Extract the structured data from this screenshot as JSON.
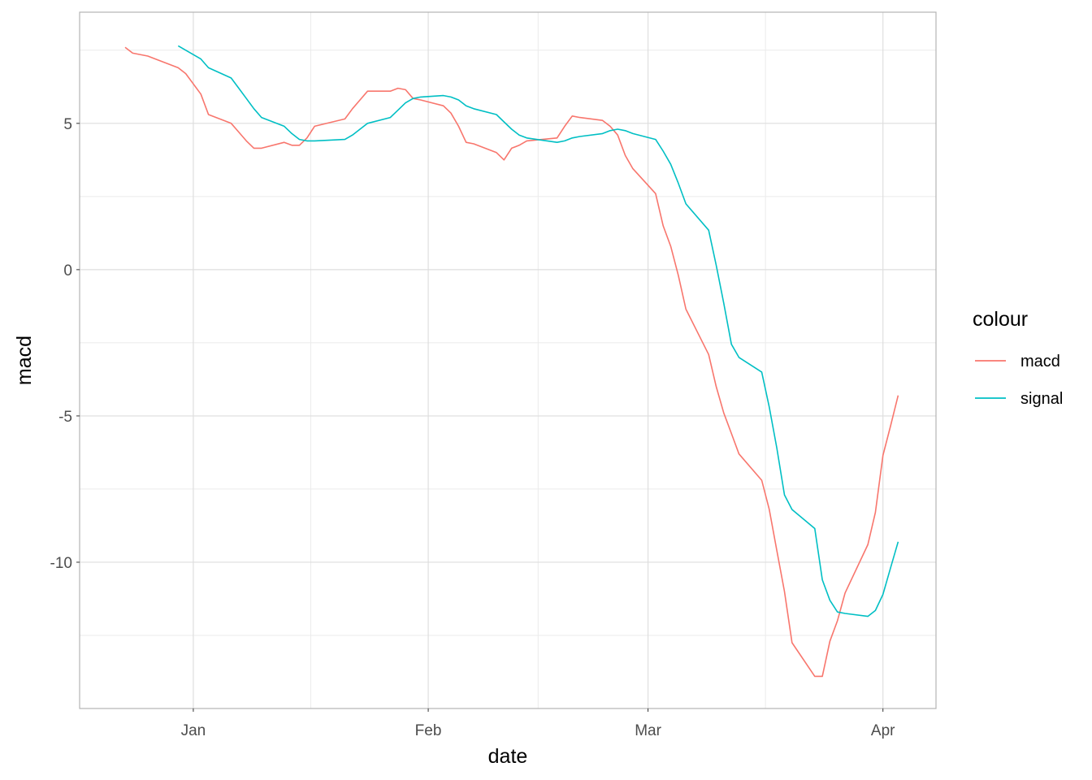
{
  "chart_data": {
    "type": "line",
    "xlabel": "date",
    "ylabel": "macd",
    "x_axis": {
      "type": "date",
      "range": [
        "2019-12-17",
        "2020-04-08"
      ],
      "ticks": [
        {
          "date": "2020-01-01",
          "label": "Jan"
        },
        {
          "date": "2020-02-01",
          "label": "Feb"
        },
        {
          "date": "2020-03-01",
          "label": "Mar"
        },
        {
          "date": "2020-04-01",
          "label": "Apr"
        }
      ]
    },
    "y_axis": {
      "range": [
        -15,
        8.8
      ],
      "ticks": [
        -10,
        -5,
        0,
        5
      ]
    },
    "grid": true,
    "legend": {
      "title": "colour",
      "position": "right"
    },
    "series": [
      {
        "name": "macd",
        "color": "#F8766D",
        "points": [
          [
            "2019-12-23",
            7.6
          ],
          [
            "2019-12-24",
            7.4
          ],
          [
            "2019-12-26",
            7.3
          ],
          [
            "2019-12-27",
            7.2
          ],
          [
            "2019-12-30",
            6.9
          ],
          [
            "2019-12-31",
            6.7
          ],
          [
            "2020-01-02",
            6.0
          ],
          [
            "2020-01-03",
            5.3
          ],
          [
            "2020-01-06",
            5.0
          ],
          [
            "2020-01-07",
            4.7
          ],
          [
            "2020-01-08",
            4.4
          ],
          [
            "2020-01-09",
            4.15
          ],
          [
            "2020-01-10",
            4.15
          ],
          [
            "2020-01-13",
            4.35
          ],
          [
            "2020-01-14",
            4.25
          ],
          [
            "2020-01-15",
            4.25
          ],
          [
            "2020-01-16",
            4.5
          ],
          [
            "2020-01-17",
            4.9
          ],
          [
            "2020-01-21",
            5.15
          ],
          [
            "2020-01-22",
            5.5
          ],
          [
            "2020-01-23",
            5.8
          ],
          [
            "2020-01-24",
            6.1
          ],
          [
            "2020-01-27",
            6.1
          ],
          [
            "2020-01-28",
            6.2
          ],
          [
            "2020-01-29",
            6.15
          ],
          [
            "2020-01-30",
            5.85
          ],
          [
            "2020-01-31",
            5.8
          ],
          [
            "2020-02-03",
            5.6
          ],
          [
            "2020-02-04",
            5.35
          ],
          [
            "2020-02-05",
            4.9
          ],
          [
            "2020-02-06",
            4.35
          ],
          [
            "2020-02-07",
            4.3
          ],
          [
            "2020-02-10",
            4.0
          ],
          [
            "2020-02-11",
            3.75
          ],
          [
            "2020-02-12",
            4.15
          ],
          [
            "2020-02-13",
            4.25
          ],
          [
            "2020-02-14",
            4.4
          ],
          [
            "2020-02-18",
            4.5
          ],
          [
            "2020-02-19",
            4.9
          ],
          [
            "2020-02-20",
            5.25
          ],
          [
            "2020-02-21",
            5.2
          ],
          [
            "2020-02-24",
            5.1
          ],
          [
            "2020-02-25",
            4.9
          ],
          [
            "2020-02-26",
            4.6
          ],
          [
            "2020-02-27",
            3.9
          ],
          [
            "2020-02-28",
            3.45
          ],
          [
            "2020-03-02",
            2.6
          ],
          [
            "2020-03-03",
            1.5
          ],
          [
            "2020-03-04",
            0.8
          ],
          [
            "2020-03-05",
            -0.2
          ],
          [
            "2020-03-06",
            -1.35
          ],
          [
            "2020-03-09",
            -2.9
          ],
          [
            "2020-03-10",
            -4.0
          ],
          [
            "2020-03-11",
            -4.9
          ],
          [
            "2020-03-12",
            -5.6
          ],
          [
            "2020-03-13",
            -6.3
          ],
          [
            "2020-03-16",
            -7.2
          ],
          [
            "2020-03-17",
            -8.2
          ],
          [
            "2020-03-18",
            -9.6
          ],
          [
            "2020-03-19",
            -11.0
          ],
          [
            "2020-03-20",
            -12.75
          ],
          [
            "2020-03-23",
            -13.9
          ],
          [
            "2020-03-24",
            -13.9
          ],
          [
            "2020-03-25",
            -12.7
          ],
          [
            "2020-03-26",
            -12.0
          ],
          [
            "2020-03-27",
            -11.05
          ],
          [
            "2020-03-30",
            -9.4
          ],
          [
            "2020-03-31",
            -8.3
          ],
          [
            "2020-04-01",
            -6.35
          ],
          [
            "2020-04-02",
            -5.35
          ],
          [
            "2020-04-03",
            -4.3
          ]
        ]
      },
      {
        "name": "signal",
        "color": "#00BFC4",
        "points": [
          [
            "2019-12-30",
            7.65
          ],
          [
            "2019-12-31",
            7.5
          ],
          [
            "2020-01-02",
            7.2
          ],
          [
            "2020-01-03",
            6.9
          ],
          [
            "2020-01-06",
            6.55
          ],
          [
            "2020-01-07",
            6.2
          ],
          [
            "2020-01-08",
            5.85
          ],
          [
            "2020-01-09",
            5.5
          ],
          [
            "2020-01-10",
            5.2
          ],
          [
            "2020-01-13",
            4.9
          ],
          [
            "2020-01-14",
            4.65
          ],
          [
            "2020-01-15",
            4.45
          ],
          [
            "2020-01-16",
            4.4
          ],
          [
            "2020-01-17",
            4.4
          ],
          [
            "2020-01-21",
            4.45
          ],
          [
            "2020-01-22",
            4.6
          ],
          [
            "2020-01-23",
            4.8
          ],
          [
            "2020-01-24",
            5.0
          ],
          [
            "2020-01-27",
            5.2
          ],
          [
            "2020-01-28",
            5.45
          ],
          [
            "2020-01-29",
            5.7
          ],
          [
            "2020-01-30",
            5.85
          ],
          [
            "2020-01-31",
            5.9
          ],
          [
            "2020-02-03",
            5.95
          ],
          [
            "2020-02-04",
            5.9
          ],
          [
            "2020-02-05",
            5.8
          ],
          [
            "2020-02-06",
            5.6
          ],
          [
            "2020-02-07",
            5.5
          ],
          [
            "2020-02-10",
            5.3
          ],
          [
            "2020-02-11",
            5.05
          ],
          [
            "2020-02-12",
            4.8
          ],
          [
            "2020-02-13",
            4.6
          ],
          [
            "2020-02-14",
            4.5
          ],
          [
            "2020-02-18",
            4.35
          ],
          [
            "2020-02-19",
            4.4
          ],
          [
            "2020-02-20",
            4.5
          ],
          [
            "2020-02-21",
            4.55
          ],
          [
            "2020-02-24",
            4.65
          ],
          [
            "2020-02-25",
            4.75
          ],
          [
            "2020-02-26",
            4.8
          ],
          [
            "2020-02-27",
            4.75
          ],
          [
            "2020-02-28",
            4.65
          ],
          [
            "2020-03-02",
            4.45
          ],
          [
            "2020-03-03",
            4.05
          ],
          [
            "2020-03-04",
            3.6
          ],
          [
            "2020-03-05",
            2.95
          ],
          [
            "2020-03-06",
            2.25
          ],
          [
            "2020-03-09",
            1.35
          ],
          [
            "2020-03-10",
            0.15
          ],
          [
            "2020-03-11",
            -1.15
          ],
          [
            "2020-03-12",
            -2.55
          ],
          [
            "2020-03-13",
            -3.0
          ],
          [
            "2020-03-16",
            -3.5
          ],
          [
            "2020-03-17",
            -4.7
          ],
          [
            "2020-03-18",
            -6.1
          ],
          [
            "2020-03-19",
            -7.7
          ],
          [
            "2020-03-20",
            -8.2
          ],
          [
            "2020-03-23",
            -8.85
          ],
          [
            "2020-03-24",
            -10.6
          ],
          [
            "2020-03-25",
            -11.3
          ],
          [
            "2020-03-26",
            -11.7
          ],
          [
            "2020-03-27",
            -11.75
          ],
          [
            "2020-03-30",
            -11.85
          ],
          [
            "2020-03-31",
            -11.65
          ],
          [
            "2020-04-01",
            -11.1
          ],
          [
            "2020-04-02",
            -10.2
          ],
          [
            "2020-04-03",
            -9.3
          ]
        ]
      }
    ]
  }
}
